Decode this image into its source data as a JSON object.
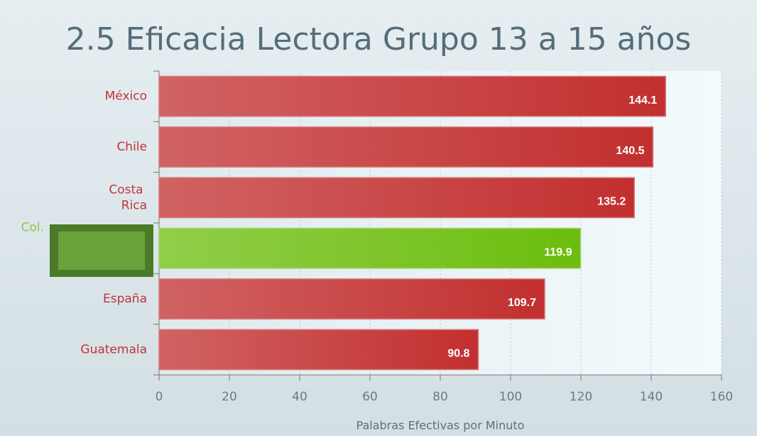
{
  "chart_data": {
    "type": "hbar",
    "title": "2.5 Eficacia Lectora Grupo 13 a 15 años",
    "categories": [
      "México",
      "Chile",
      "Costa Rica",
      "Col.",
      "España",
      "Guatemala"
    ],
    "values": [
      144.1,
      140.5,
      135.2,
      119.9,
      109.7,
      90.8
    ],
    "colors": [
      "#c22f2f",
      "#c22f2f",
      "#c22f2f",
      "#6cbd0e",
      "#c22f2f",
      "#c22f2f"
    ],
    "label_colors": [
      "#c0343a",
      "#c0343a",
      "#c0343a",
      "#8dc63f",
      "#c0343a",
      "#c0343a"
    ],
    "xlabel": "Palabras Efectivas por Minuto",
    "xlim": [
      0,
      160
    ],
    "xticks": [
      0,
      20,
      40,
      60,
      80,
      100,
      120,
      140,
      160
    ],
    "grid": true
  }
}
